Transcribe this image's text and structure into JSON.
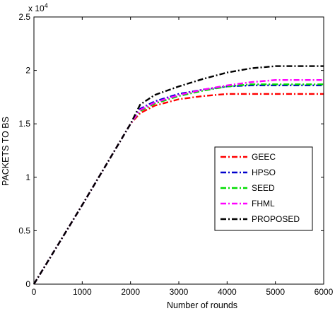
{
  "chart_data": {
    "type": "line",
    "title": "",
    "xlabel": "Number of rounds",
    "ylabel": "PACKETS TO BS",
    "y_exponent_label": "x 10",
    "y_exponent_power": "4",
    "xlim": [
      0,
      6000
    ],
    "ylim": [
      0,
      2.5
    ],
    "xticks": [
      0,
      1000,
      2000,
      3000,
      4000,
      5000,
      6000
    ],
    "xtick_labels": [
      "0",
      "1000",
      "2000",
      "3000",
      "4000",
      "5000",
      "6000"
    ],
    "yticks": [
      0,
      0.5,
      1,
      1.5,
      2,
      2.5
    ],
    "ytick_labels": [
      "0",
      "0.5",
      "1",
      "1.5",
      "2",
      "2.5"
    ],
    "grid": false,
    "legend_position": "lower-right",
    "series": [
      {
        "name": "GEEC",
        "color": "#ff0000",
        "x": [
          0,
          500,
          1000,
          1500,
          2000,
          2200,
          2500,
          3000,
          3500,
          4000,
          4500,
          5000,
          5500,
          6000
        ],
        "y": [
          0,
          0.37,
          0.74,
          1.12,
          1.5,
          1.6,
          1.67,
          1.73,
          1.76,
          1.78,
          1.78,
          1.78,
          1.78,
          1.78
        ]
      },
      {
        "name": "HPSO",
        "color": "#0000cc",
        "x": [
          0,
          500,
          1000,
          1500,
          2000,
          2200,
          2500,
          3000,
          3500,
          4000,
          4500,
          5000,
          5500,
          6000
        ],
        "y": [
          0,
          0.37,
          0.74,
          1.12,
          1.5,
          1.64,
          1.71,
          1.78,
          1.82,
          1.85,
          1.86,
          1.86,
          1.86,
          1.86
        ]
      },
      {
        "name": "SEED",
        "color": "#00dd00",
        "x": [
          0,
          500,
          1000,
          1500,
          2000,
          2200,
          2500,
          3000,
          3500,
          4000,
          4500,
          5000,
          5500,
          6000
        ],
        "y": [
          0,
          0.37,
          0.74,
          1.12,
          1.5,
          1.62,
          1.69,
          1.76,
          1.81,
          1.85,
          1.87,
          1.87,
          1.87,
          1.87
        ]
      },
      {
        "name": "FHML",
        "color": "#ff00ff",
        "x": [
          0,
          500,
          1000,
          1500,
          2000,
          2200,
          2500,
          3000,
          3500,
          4000,
          4500,
          5000,
          5500,
          6000
        ],
        "y": [
          0,
          0.37,
          0.74,
          1.12,
          1.5,
          1.63,
          1.7,
          1.77,
          1.82,
          1.86,
          1.89,
          1.91,
          1.91,
          1.91
        ]
      },
      {
        "name": "PROPOSED",
        "color": "#000000",
        "x": [
          0,
          500,
          1000,
          1500,
          2000,
          2200,
          2500,
          3000,
          3500,
          4000,
          4500,
          5000,
          5500,
          6000
        ],
        "y": [
          0,
          0.37,
          0.74,
          1.12,
          1.5,
          1.68,
          1.77,
          1.85,
          1.92,
          1.98,
          2.02,
          2.04,
          2.04,
          2.04
        ]
      }
    ]
  }
}
